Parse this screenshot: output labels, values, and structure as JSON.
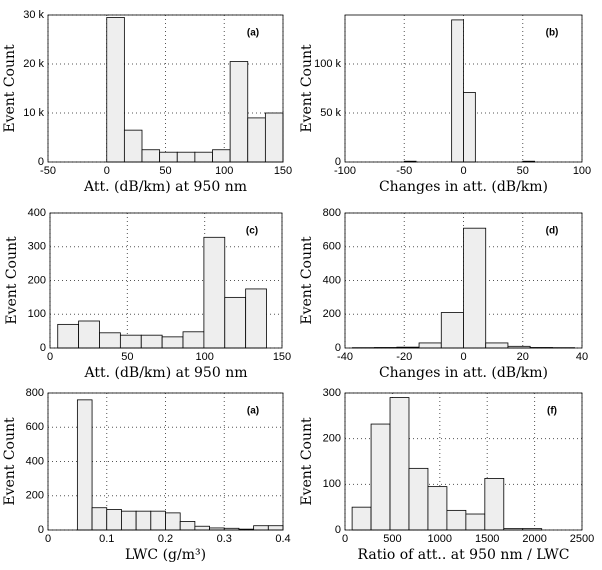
{
  "chart_data": [
    {
      "type": "histogram",
      "annotation": "(a)",
      "xlabel": "Att. (dB/km) at 950 nm",
      "ylabel": "Event Count",
      "bins": [
        0,
        15,
        30,
        45,
        60,
        75,
        90,
        105,
        120,
        135,
        150
      ],
      "values": [
        29500,
        6500,
        2500,
        2000,
        2000,
        2000,
        2500,
        20500,
        9000,
        10000
      ],
      "xlim": [
        -50,
        150
      ],
      "xticks": [
        -50,
        0,
        50,
        100,
        150
      ],
      "ylim": [
        0,
        30000
      ],
      "yticks": [
        0,
        {
          "value": 10000,
          "label": "10 k"
        },
        {
          "value": 20000,
          "label": "20 k"
        },
        {
          "value": 30000,
          "label": "30 k"
        }
      ],
      "grid": true,
      "color": "#eeeeee"
    },
    {
      "type": "histogram",
      "annotation": "(b)",
      "xlabel": "Changes in att. (dB/km)",
      "ylabel": "Event Count",
      "bins": [
        -100,
        -90,
        -80,
        -70,
        -60,
        -50,
        -40,
        -30,
        -20,
        -10,
        0,
        10,
        20,
        30,
        40,
        50,
        60,
        70,
        80,
        90,
        100
      ],
      "values": [
        0,
        0,
        0,
        0,
        0,
        800,
        0,
        0,
        0,
        145000,
        71000,
        0,
        0,
        0,
        0,
        800,
        0,
        0,
        0,
        0
      ],
      "xlim": [
        -100,
        100
      ],
      "xticks": [
        -100,
        -50,
        0,
        50,
        100
      ],
      "ylim": [
        0,
        150000
      ],
      "yticks": [
        0,
        {
          "value": 50000,
          "label": "50 k"
        },
        {
          "value": 100000,
          "label": "100 k"
        }
      ],
      "grid": true,
      "color": "#eeeeee"
    },
    {
      "type": "histogram",
      "annotation": "(c)",
      "xlabel": "Att. (dB/km) at 950 nm",
      "ylabel": "Event Count",
      "bins": [
        5,
        18.5,
        32,
        45.5,
        59,
        72.5,
        86,
        99.5,
        113,
        126.5,
        140
      ],
      "values": [
        70,
        80,
        45,
        38,
        38,
        33,
        48,
        328,
        150,
        175
      ],
      "xlim": [
        0,
        150
      ],
      "xticks": [
        0,
        50,
        100,
        150
      ],
      "ylim": [
        0,
        400
      ],
      "yticks": [
        0,
        100,
        200,
        300,
        400
      ],
      "grid": true,
      "color": "#eeeeee"
    },
    {
      "type": "histogram",
      "annotation": "(d)",
      "xlabel": "Changes in att. (dB/km)",
      "ylabel": "Event Count",
      "bins": [
        -37.5,
        -30,
        -22.5,
        -15,
        -7.5,
        0,
        7.5,
        15,
        22.5,
        30,
        37.5
      ],
      "values": [
        2,
        3,
        5,
        30,
        210,
        710,
        30,
        10,
        3,
        2
      ],
      "xlim": [
        -40,
        40
      ],
      "xticks": [
        -40,
        -20,
        0,
        20,
        40
      ],
      "ylim": [
        0,
        800
      ],
      "yticks": [
        0,
        200,
        400,
        600,
        800
      ],
      "grid": true,
      "color": "#eeeeee"
    },
    {
      "type": "histogram",
      "annotation": "(a)",
      "xlabel": "LWC (g/m³)",
      "ylabel": "Event Count",
      "bins": [
        0.05,
        0.075,
        0.1,
        0.125,
        0.15,
        0.175,
        0.2,
        0.225,
        0.25,
        0.275,
        0.3,
        0.325,
        0.35,
        0.375,
        0.4
      ],
      "values": [
        760,
        130,
        120,
        110,
        110,
        110,
        100,
        50,
        22,
        12,
        10,
        5,
        25,
        25
      ],
      "xlim": [
        0,
        0.4
      ],
      "xticks": [
        0,
        0.1,
        0.2,
        0.3,
        0.4
      ],
      "ylim": [
        0,
        800
      ],
      "yticks": [
        0,
        200,
        400,
        600,
        800
      ],
      "grid": true,
      "color": "#eeeeee"
    },
    {
      "type": "histogram",
      "annotation": "(f)",
      "xlabel": "Ratio of att.. at 950 nm / LWC",
      "ylabel": "Event Count",
      "bins": [
        75,
        275,
        475,
        675,
        875,
        1075,
        1275,
        1475,
        1675,
        1875,
        2075
      ],
      "values": [
        50,
        232,
        290,
        135,
        95,
        43,
        35,
        113,
        3,
        3
      ],
      "xlim": [
        0,
        2500
      ],
      "xticks": [
        0,
        500,
        1000,
        1500,
        2000,
        2500
      ],
      "ylim": [
        0,
        300
      ],
      "yticks": [
        0,
        100,
        200,
        300
      ],
      "grid": true,
      "color": "#eeeeee"
    }
  ]
}
